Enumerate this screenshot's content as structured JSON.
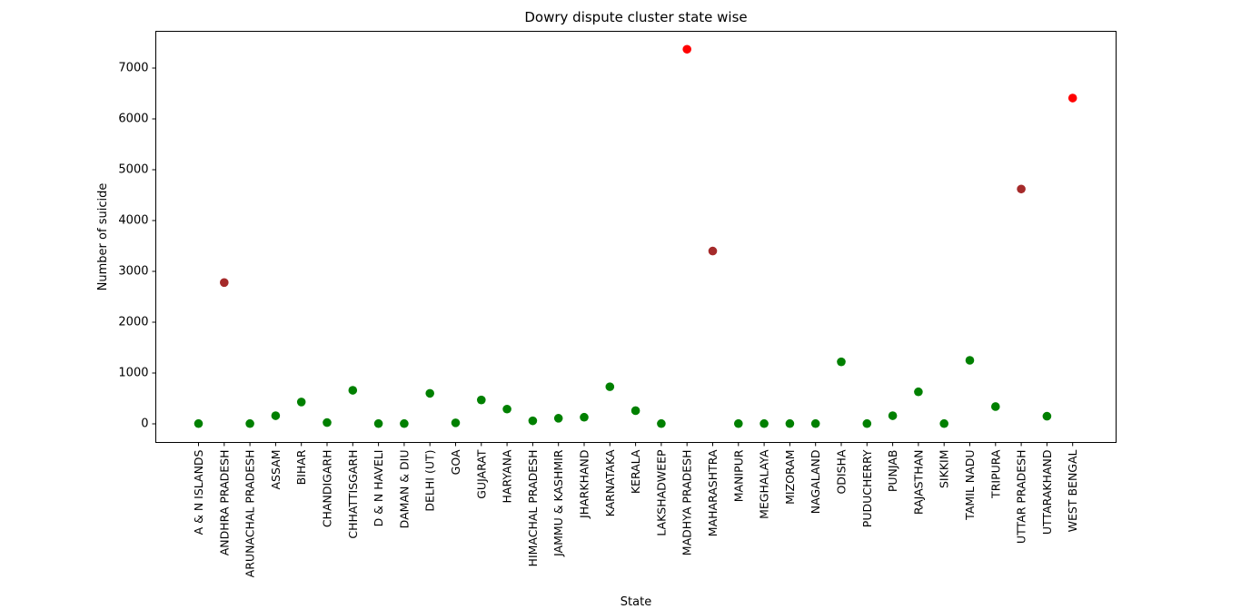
{
  "chart_data": {
    "type": "scatter",
    "title": "Dowry dispute cluster state wise",
    "xlabel": "State",
    "ylabel": "Number of suicide",
    "ylim": [
      -370,
      7700
    ],
    "yticks": [
      0,
      1000,
      2000,
      3000,
      4000,
      5000,
      6000,
      7000
    ],
    "grid": false,
    "legend": "none",
    "categories": [
      "A & N ISLANDS",
      "ANDHRA PRADESH",
      "ARUNACHAL PRADESH",
      "ASSAM",
      "BIHAR",
      "CHANDIGARH",
      "CHHATTISGARH",
      "D & N HAVELI",
      "DAMAN & DIU",
      "DELHI (UT)",
      "GOA",
      "GUJARAT",
      "HARYANA",
      "HIMACHAL PRADESH",
      "JAMMU & KASHMIR",
      "JHARKHAND",
      "KARNATAKA",
      "KERALA",
      "LAKSHADWEEP",
      "MADHYA PRADESH",
      "MAHARASHTRA",
      "MANIPUR",
      "MEGHALAYA",
      "MIZORAM",
      "NAGALAND",
      "ODISHA",
      "PUDUCHERRY",
      "PUNJAB",
      "RAJASTHAN",
      "SIKKIM",
      "TAMIL NADU",
      "TRIPURA",
      "UTTAR PRADESH",
      "UTTARAKHAND",
      "WEST BENGAL"
    ],
    "values": [
      5,
      2780,
      5,
      160,
      430,
      25,
      660,
      5,
      5,
      600,
      20,
      470,
      290,
      60,
      110,
      130,
      730,
      260,
      5,
      7370,
      3400,
      5,
      5,
      5,
      5,
      1220,
      5,
      160,
      630,
      5,
      1250,
      340,
      4620,
      150,
      6410
    ],
    "clusters": [
      0,
      1,
      0,
      0,
      0,
      0,
      0,
      0,
      0,
      0,
      0,
      0,
      0,
      0,
      0,
      0,
      0,
      0,
      0,
      2,
      1,
      0,
      0,
      0,
      0,
      0,
      0,
      0,
      0,
      0,
      0,
      0,
      1,
      0,
      2
    ],
    "cluster_colors": [
      "#008000",
      "#a52a2a",
      "#ff0000"
    ]
  }
}
